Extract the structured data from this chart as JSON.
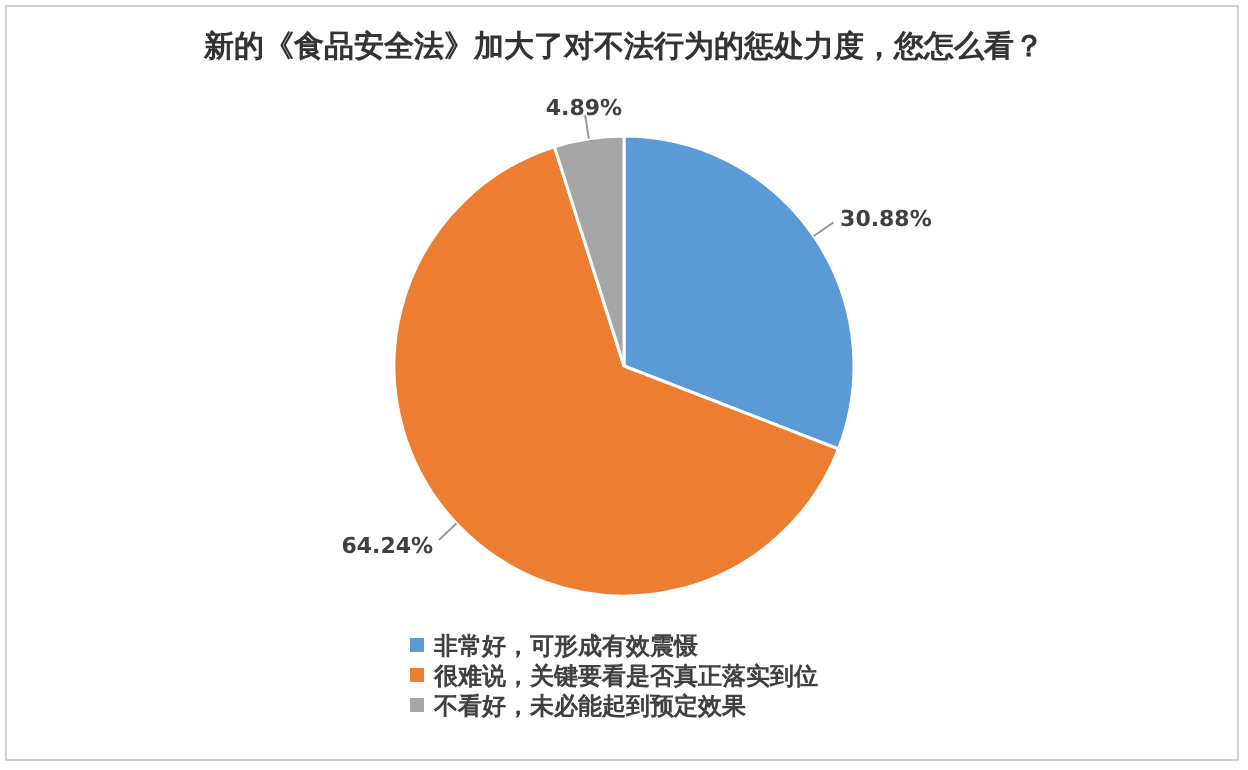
{
  "chart_data": {
    "type": "pie",
    "title": "新的《食品安全法》加大了对不法行为的惩处力度，您怎么看？",
    "categories": [
      "非常好，可形成有效震慑",
      "很难说，关键要看是否真正落实到位",
      "不看好，未必能起到预定效果"
    ],
    "values": [
      30.88,
      64.24,
      4.89
    ],
    "colors": [
      "#5b9bd5",
      "#ed7d31",
      "#a5a5a5"
    ],
    "value_labels": [
      "30.88%",
      "64.24%",
      "4.89%"
    ],
    "legend": "bottom"
  }
}
